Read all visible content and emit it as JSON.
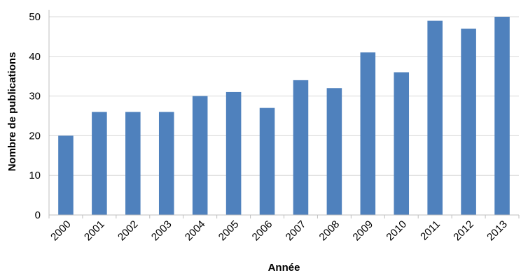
{
  "chart_data": {
    "type": "bar",
    "categories": [
      "2000",
      "2001",
      "2002",
      "2003",
      "2004",
      "2005",
      "2006",
      "2007",
      "2008",
      "2009",
      "2010",
      "2011",
      "2012",
      "2013"
    ],
    "values": [
      20,
      26,
      26,
      26,
      30,
      31,
      27,
      34,
      32,
      41,
      36,
      49,
      47,
      50
    ],
    "xlabel": "Année",
    "ylabel": "Nombre de publications",
    "ylim": [
      0,
      50
    ],
    "yticks": [
      "0",
      "10",
      "20",
      "30",
      "40",
      "50"
    ],
    "grid": true,
    "legend": "none",
    "bar_color": "#4f81bd",
    "grid_color": "#d9d9d9",
    "axis_color": "#bfbfbf"
  }
}
